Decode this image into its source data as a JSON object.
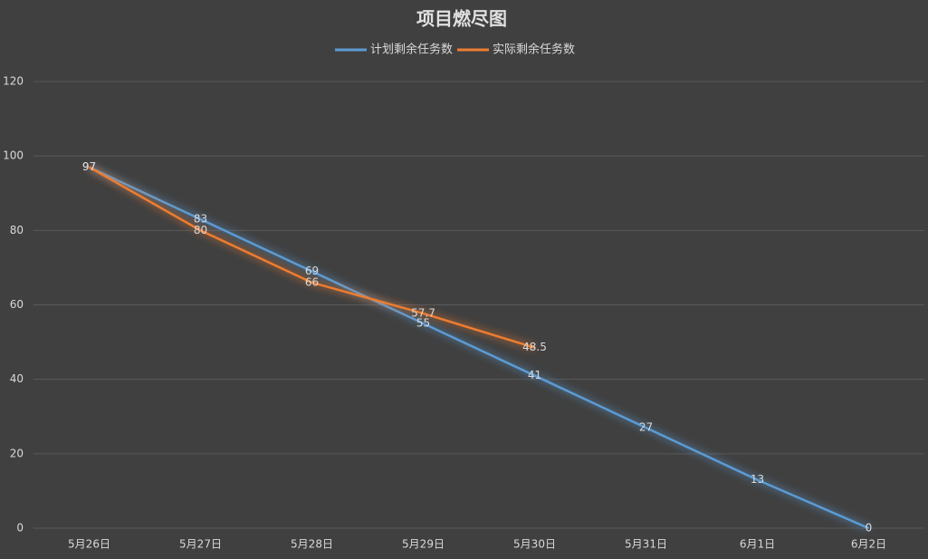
{
  "chart_data": {
    "type": "line",
    "title": "项目燃尽图",
    "categories": [
      "5月26日",
      "5月27日",
      "5月28日",
      "5月29日",
      "5月30日",
      "5月31日",
      "6月1日",
      "6月2日"
    ],
    "series": [
      {
        "name": "计划剩余任务数",
        "color": "#5b9bd5",
        "values": [
          97,
          83,
          69,
          55,
          41,
          27,
          13,
          0
        ]
      },
      {
        "name": "实际剩余任务数",
        "color": "#ed7d31",
        "values": [
          97,
          80,
          66,
          57.7,
          48.5,
          null,
          null,
          null
        ]
      }
    ],
    "ylim": [
      0,
      120
    ],
    "yticks": [
      0,
      20,
      40,
      60,
      80,
      100,
      120
    ],
    "grid": true,
    "legend": "top"
  }
}
